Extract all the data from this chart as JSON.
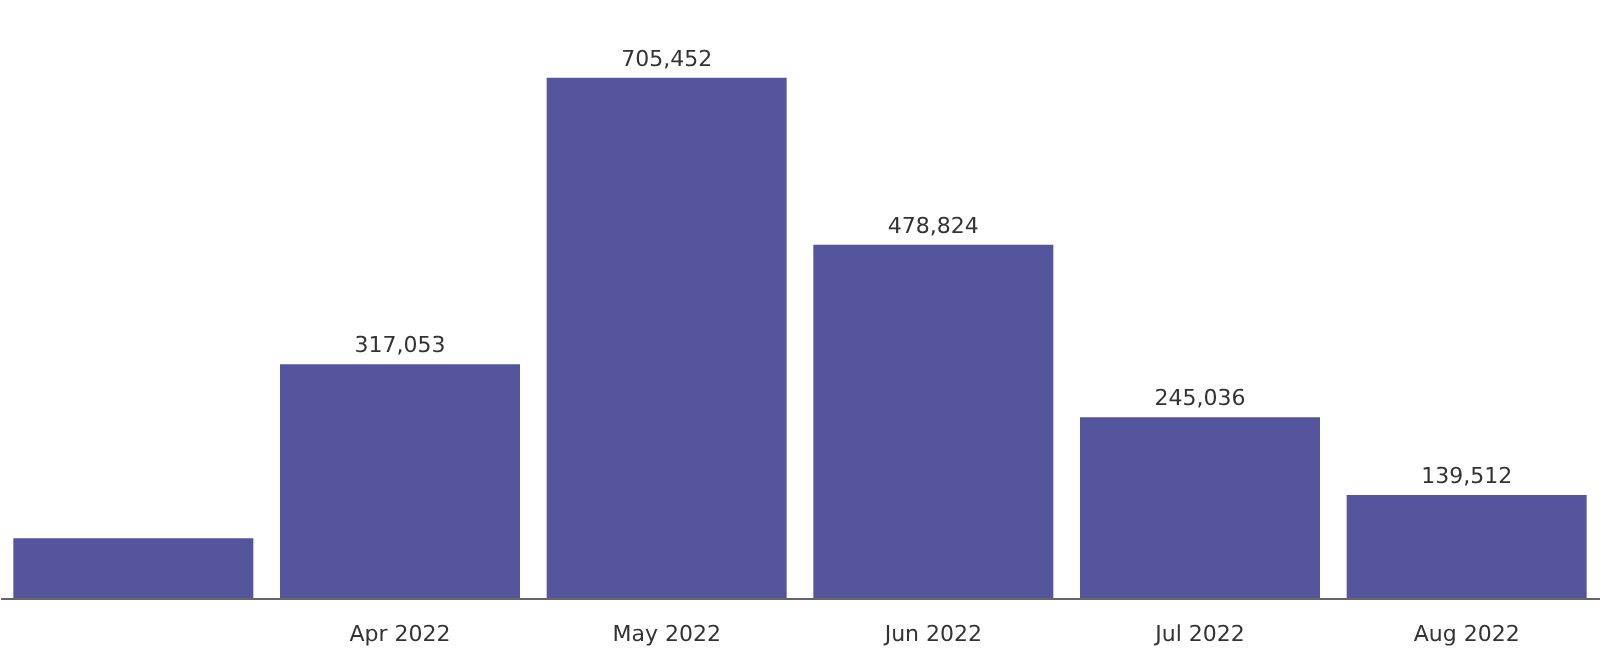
{
  "chart_data": {
    "type": "bar",
    "categories": [
      null,
      "Apr 2022",
      "May 2022",
      "Jun 2022",
      "Jul 2022",
      "Aug 2022"
    ],
    "values": [
      81000,
      317053,
      705452,
      478824,
      245036,
      139512
    ],
    "value_labels": [
      null,
      "317,053",
      "705,452",
      "478,824",
      "245,036",
      "139,512"
    ],
    "color": "#54559c",
    "tick_labels": "x"
  }
}
